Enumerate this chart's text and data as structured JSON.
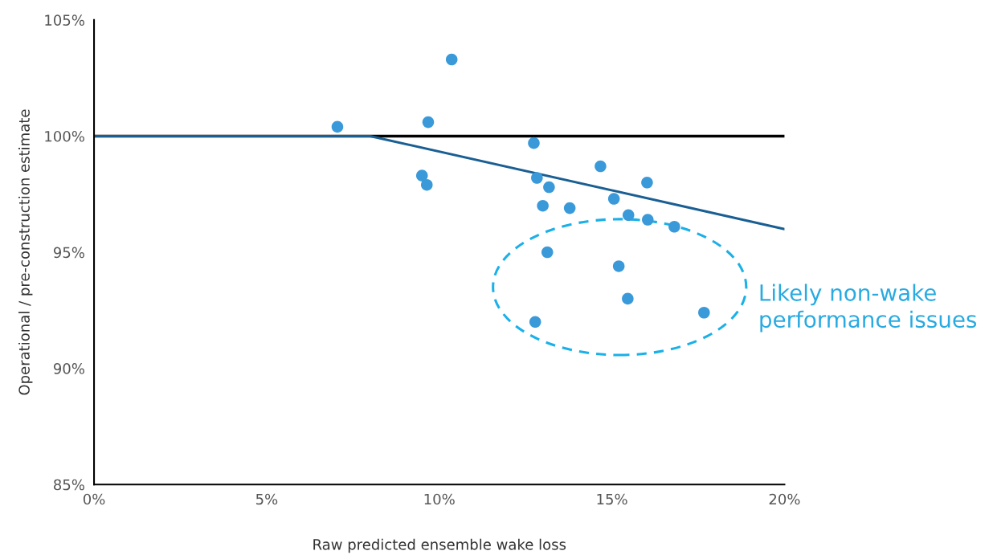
{
  "chart_data": {
    "type": "scatter",
    "xlabel": "Raw predicted ensemble wake loss",
    "ylabel": "Operational / pre-construction estimate",
    "xlim": [
      0,
      20
    ],
    "xticks": [
      {
        "value": 0,
        "label": "0%"
      },
      {
        "value": 5,
        "label": "5%"
      },
      {
        "value": 10,
        "label": "10%"
      },
      {
        "value": 15,
        "label": "15%"
      },
      {
        "value": 20,
        "label": "20%"
      }
    ],
    "ylim": [
      85,
      105
    ],
    "yticks": [
      {
        "value": 85,
        "label": "85%"
      },
      {
        "value": 90,
        "label": "90%"
      },
      {
        "value": 95,
        "label": "95%"
      },
      {
        "value": 100,
        "label": "100%"
      },
      {
        "value": 105,
        "label": "105%"
      }
    ],
    "grid": false,
    "legend": false,
    "series": [
      {
        "type": "line",
        "color": "#000000",
        "x": [
          0,
          20
        ],
        "values": [
          100,
          100
        ]
      },
      {
        "type": "line",
        "color": "#1a5f93",
        "x": [
          0,
          8,
          20
        ],
        "values": [
          100,
          100,
          96
        ]
      },
      {
        "marker": "circle",
        "color": "#3a9ad9",
        "x": [
          7.05,
          9.68,
          10.36,
          9.5,
          9.64,
          12.74,
          12.83,
          13.18,
          13.0,
          13.78,
          14.67,
          15.06,
          15.48,
          16.02,
          16.04,
          16.81
        ],
        "values": [
          100.4,
          100.6,
          103.3,
          98.3,
          97.9,
          99.7,
          98.2,
          97.8,
          97.0,
          96.9,
          98.7,
          97.3,
          96.6,
          98.0,
          96.4,
          96.1
        ]
      },
      {
        "marker": "circle",
        "color": "#3a9ad9",
        "line_style": "dashed",
        "x": [
          13.13,
          15.2,
          15.46,
          12.78,
          17.67
        ],
        "values": [
          95.0,
          94.4,
          93.0,
          92.0,
          92.4
        ]
      }
    ],
    "annotations": [
      "Likely non-wake\nperformance issues"
    ]
  }
}
